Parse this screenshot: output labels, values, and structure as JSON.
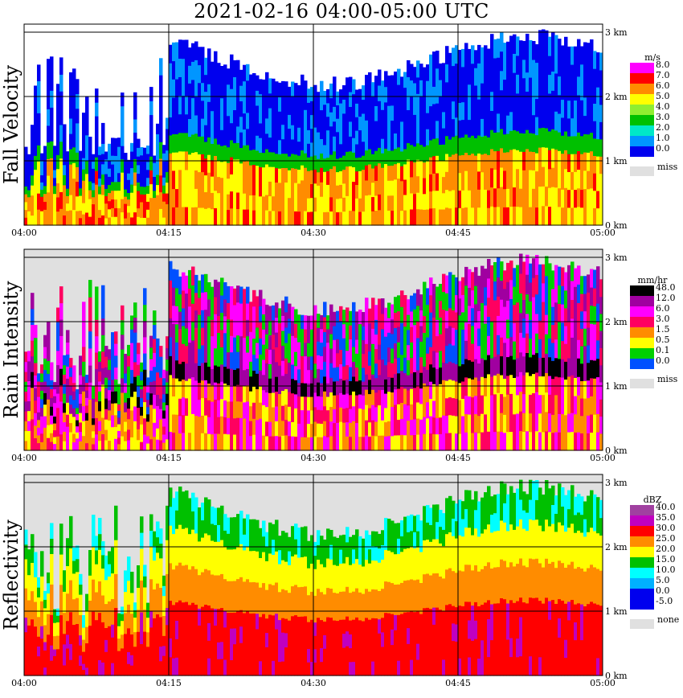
{
  "title": "2021-02-16   04:00-05:00 UTC",
  "chart_data": [
    {
      "type": "heatmap",
      "panel": "fall-velocity",
      "ylabel": "Fall Velocity",
      "x_ticks": [
        "04:00",
        "04:15",
        "04:30",
        "04:45",
        "05:00"
      ],
      "y_ticks": [
        "0 km",
        "1 km",
        "2 km",
        "3 km"
      ],
      "legend_unit": "m/s",
      "legend_labels": [
        "8.0",
        "7.0",
        "6.0",
        "5.0",
        "4.0",
        "3.0",
        "2.0",
        "1.0",
        "0.0"
      ],
      "legend_missing": "miss",
      "colors": [
        "#ff00ff",
        "#ff0000",
        "#ff8c00",
        "#ffff00",
        "#90ee30",
        "#00c000",
        "#00e8c8",
        "#0096ff",
        "#0000ee"
      ]
    },
    {
      "type": "heatmap",
      "panel": "rain-intensity",
      "ylabel": "Rain Intensity",
      "x_ticks": [
        "04:00",
        "04:15",
        "04:30",
        "04:45",
        "05:00"
      ],
      "y_ticks": [
        "0 km",
        "1 km",
        "2 km",
        "3 km"
      ],
      "legend_unit": "mm/hr",
      "legend_labels": [
        "48.0",
        "12.0",
        "6.0",
        "3.0",
        "1.5",
        "0.5",
        "0.1",
        "0.0"
      ],
      "legend_missing": "miss",
      "colors": [
        "#000000",
        "#a000a0",
        "#ff00ff",
        "#ff0060",
        "#ff8c00",
        "#ffff00",
        "#00d000",
        "#0050ff",
        "#00ffff"
      ]
    },
    {
      "type": "heatmap",
      "panel": "reflectivity",
      "ylabel": "Reflectivity",
      "x_ticks": [
        "04:00",
        "04:15",
        "04:30",
        "04:45",
        "05:00"
      ],
      "y_ticks": [
        "0 km",
        "1 km",
        "2 km",
        "3 km"
      ],
      "legend_unit": "dBZ",
      "legend_labels": [
        "40.0",
        "35.0",
        "30.0",
        "25.0",
        "20.0",
        "15.0",
        "10.0",
        "5.0",
        "0.0",
        "-5.0"
      ],
      "legend_missing": "none",
      "colors": [
        "#a040a0",
        "#c000c0",
        "#ff0000",
        "#ff8c00",
        "#ffff00",
        "#00c000",
        "#00ffff",
        "#00b0ff",
        "#0000ee"
      ]
    }
  ]
}
